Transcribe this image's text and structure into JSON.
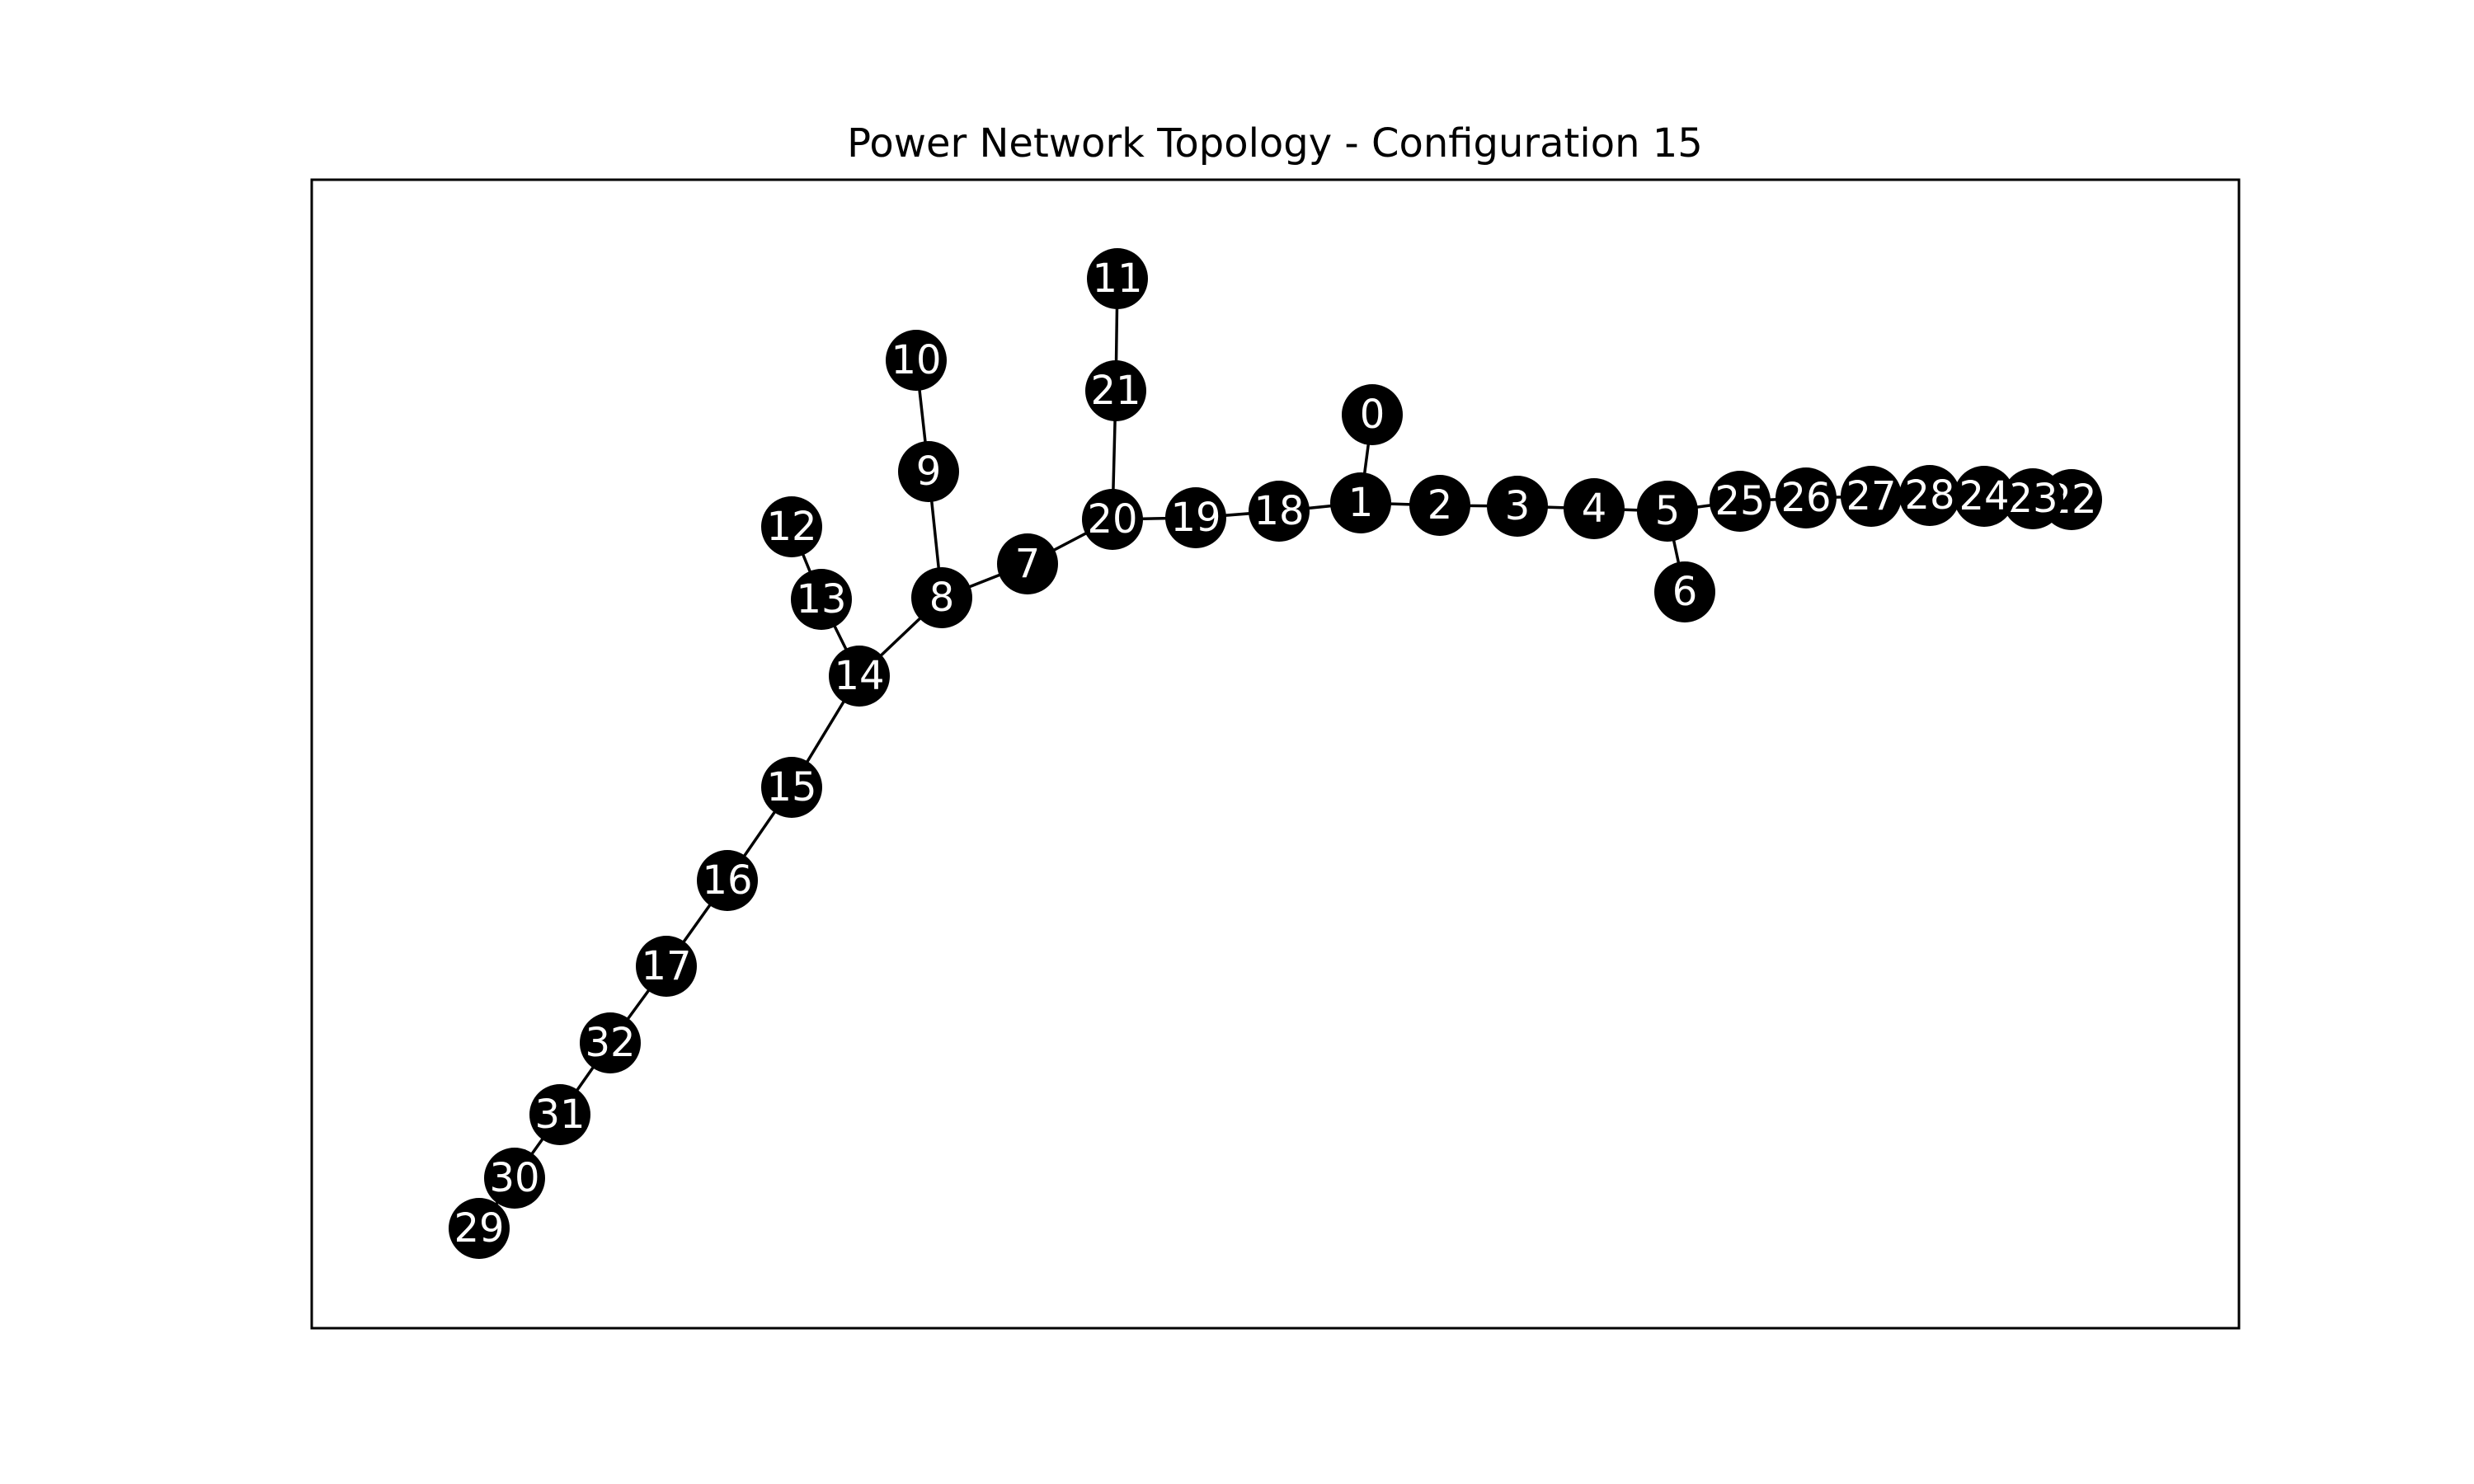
{
  "title": "Power Network Topology - Configuration 15",
  "colors": {
    "node_fill": "#000000",
    "node_label": "#ffffff",
    "edge": "#000000",
    "frame": "#000000",
    "background": "#ffffff"
  },
  "diagram": {
    "nodes": [
      {
        "id": "0",
        "label": "0"
      },
      {
        "id": "1",
        "label": "1"
      },
      {
        "id": "2",
        "label": "2"
      },
      {
        "id": "3",
        "label": "3"
      },
      {
        "id": "4",
        "label": "4"
      },
      {
        "id": "5",
        "label": "5"
      },
      {
        "id": "6",
        "label": "6"
      },
      {
        "id": "7",
        "label": "7"
      },
      {
        "id": "8",
        "label": "8"
      },
      {
        "id": "9",
        "label": "9"
      },
      {
        "id": "10",
        "label": "10"
      },
      {
        "id": "11",
        "label": "11"
      },
      {
        "id": "12",
        "label": "12"
      },
      {
        "id": "13",
        "label": "13"
      },
      {
        "id": "14",
        "label": "14"
      },
      {
        "id": "15",
        "label": "15"
      },
      {
        "id": "16",
        "label": "16"
      },
      {
        "id": "17",
        "label": "17"
      },
      {
        "id": "18",
        "label": "18"
      },
      {
        "id": "19",
        "label": "19"
      },
      {
        "id": "20",
        "label": "20"
      },
      {
        "id": "21",
        "label": "21"
      },
      {
        "id": "22",
        "label": "22"
      },
      {
        "id": "23",
        "label": "23"
      },
      {
        "id": "24",
        "label": "24"
      },
      {
        "id": "25",
        "label": "25"
      },
      {
        "id": "26",
        "label": "26"
      },
      {
        "id": "27",
        "label": "27"
      },
      {
        "id": "28",
        "label": "28"
      },
      {
        "id": "29",
        "label": "29"
      },
      {
        "id": "30",
        "label": "30"
      },
      {
        "id": "31",
        "label": "31"
      },
      {
        "id": "32",
        "label": "32"
      }
    ],
    "edges": [
      [
        "0",
        "1"
      ],
      [
        "1",
        "2"
      ],
      [
        "2",
        "3"
      ],
      [
        "3",
        "4"
      ],
      [
        "4",
        "5"
      ],
      [
        "5",
        "6"
      ],
      [
        "5",
        "25"
      ],
      [
        "25",
        "26"
      ],
      [
        "26",
        "27"
      ],
      [
        "27",
        "28"
      ],
      [
        "28",
        "24"
      ],
      [
        "24",
        "23"
      ],
      [
        "23",
        "22"
      ],
      [
        "1",
        "18"
      ],
      [
        "18",
        "19"
      ],
      [
        "19",
        "20"
      ],
      [
        "20",
        "21"
      ],
      [
        "21",
        "11"
      ],
      [
        "20",
        "7"
      ],
      [
        "7",
        "8"
      ],
      [
        "8",
        "9"
      ],
      [
        "9",
        "10"
      ],
      [
        "8",
        "14"
      ],
      [
        "14",
        "13"
      ],
      [
        "13",
        "12"
      ],
      [
        "14",
        "15"
      ],
      [
        "15",
        "16"
      ],
      [
        "16",
        "17"
      ],
      [
        "17",
        "32"
      ],
      [
        "32",
        "31"
      ],
      [
        "31",
        "30"
      ],
      [
        "30",
        "29"
      ]
    ]
  }
}
